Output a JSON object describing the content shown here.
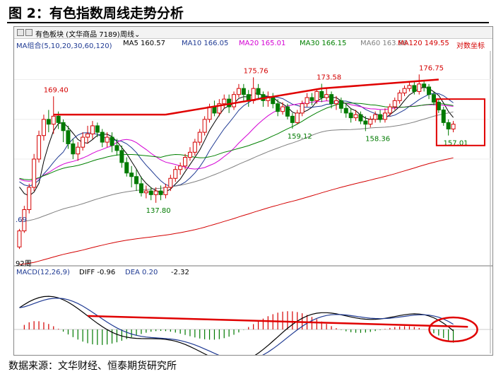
{
  "title": "图 2：有色指数周线走势分析",
  "source": "数据来源：文华财经、恒泰期货研究所",
  "toolbar": {
    "instrument": "有色板块 (文华商品  7189)",
    "period": "周线",
    "axis_mode": "对数坐标",
    "bars_label": "92周",
    "left_tick": ".69"
  },
  "ma_legend": [
    {
      "label": "MA组合(5,10,20,30,60,120)",
      "color": "#1f3a93"
    },
    {
      "label": "MA5 160.57",
      "color": "#000000"
    },
    {
      "label": "MA10 166.05",
      "color": "#1f3a93"
    },
    {
      "label": "MA20 165.01",
      "color": "#d400d4"
    },
    {
      "label": "MA30 166.15",
      "color": "#008000"
    },
    {
      "label": "MA60 163.86",
      "color": "#808080"
    },
    {
      "label": "MA120 149.55",
      "color": "#d40000"
    }
  ],
  "macd_legend": {
    "name": "MACD(12,26,9)",
    "diff": "DIFF -0.96",
    "dea": "DEA 0.20",
    "macd": "-2.32"
  },
  "colors": {
    "up": "#d40000",
    "down": "#007a00",
    "annotation": "#e00000"
  },
  "chart_data": [
    {
      "type": "candlestick",
      "title": "有色指数周线",
      "scale": "log",
      "ylim": [
        125,
        185
      ],
      "annotations": [
        {
          "label": "169.40",
          "value": 169.4,
          "bar": 7
        },
        {
          "label": "137.80",
          "value": 137.8,
          "bar": 28
        },
        {
          "label": "175.76",
          "value": 175.76,
          "bar": 48
        },
        {
          "label": "159.12",
          "value": 159.12,
          "bar": 57
        },
        {
          "label": "173.58",
          "value": 173.58,
          "bar": 63
        },
        {
          "label": "158.36",
          "value": 158.36,
          "bar": 73
        },
        {
          "label": "176.75",
          "value": 176.75,
          "bar": 84
        },
        {
          "label": "157.01",
          "value": 157.01,
          "bar": 89
        }
      ],
      "candles": [
        [
          126.5,
          130.5,
          126,
          131
        ],
        [
          130.5,
          136,
          130,
          137
        ],
        [
          136,
          142,
          135,
          143
        ],
        [
          142,
          150,
          141,
          151.5
        ],
        [
          150,
          157,
          149,
          158.5
        ],
        [
          157,
          162,
          155.5,
          163.5
        ],
        [
          162,
          160.5,
          158,
          165
        ],
        [
          160.5,
          163,
          157.5,
          169.4
        ],
        [
          163,
          161,
          159,
          164.5
        ],
        [
          161,
          158.5,
          155,
          162
        ],
        [
          158.5,
          154.5,
          153,
          160
        ],
        [
          154.5,
          151.5,
          150,
          156
        ],
        [
          151.5,
          153.5,
          149.5,
          155
        ],
        [
          153.5,
          156.5,
          152.5,
          158
        ],
        [
          156.5,
          157.5,
          154.5,
          160
        ],
        [
          157.5,
          160,
          156,
          161.5
        ],
        [
          160,
          158,
          156.5,
          161
        ],
        [
          158,
          155,
          153.5,
          159
        ],
        [
          155,
          156.5,
          153.5,
          158
        ],
        [
          156.5,
          154,
          152,
          158
        ],
        [
          154,
          152.5,
          151,
          156
        ],
        [
          152.5,
          149,
          147.5,
          154
        ],
        [
          149,
          146,
          145,
          150.5
        ],
        [
          146,
          145,
          142,
          148
        ],
        [
          145,
          143,
          141,
          147
        ],
        [
          143,
          140.5,
          139.5,
          145
        ],
        [
          140.5,
          141,
          139,
          142.5
        ],
        [
          141,
          140,
          138.5,
          142
        ],
        [
          140,
          141,
          137.8,
          142
        ],
        [
          141,
          140,
          138.5,
          142.5
        ],
        [
          140,
          142,
          139,
          143
        ],
        [
          142,
          144.5,
          141,
          145.5
        ],
        [
          144.5,
          147,
          143.5,
          148
        ],
        [
          147,
          148,
          145.5,
          149
        ],
        [
          148,
          150.5,
          147,
          151.5
        ],
        [
          150.5,
          152,
          149.5,
          153.5
        ],
        [
          152,
          155,
          151,
          156
        ],
        [
          155,
          158,
          154,
          159
        ],
        [
          158,
          162,
          157,
          163
        ],
        [
          162,
          166,
          161,
          167
        ],
        [
          166,
          164,
          163,
          168
        ],
        [
          164,
          167,
          163,
          168.5
        ],
        [
          167,
          168.5,
          165.5,
          170
        ],
        [
          168.5,
          166,
          164,
          170
        ],
        [
          166,
          170,
          165,
          171
        ],
        [
          170,
          172,
          169,
          173.5
        ],
        [
          172,
          170,
          168,
          173.5
        ],
        [
          170,
          168,
          166,
          171.5
        ],
        [
          168,
          172,
          167,
          175.76
        ],
        [
          172,
          170,
          168.5,
          173.5
        ],
        [
          170,
          168,
          166,
          171
        ],
        [
          168,
          169,
          166,
          171
        ],
        [
          169,
          167,
          165.5,
          170.5
        ],
        [
          167,
          164.5,
          163,
          168.5
        ],
        [
          164.5,
          166,
          163.5,
          167.5
        ],
        [
          166,
          163,
          162,
          167
        ],
        [
          163,
          161,
          159.12,
          164
        ],
        [
          161,
          164,
          160.5,
          165
        ],
        [
          164,
          167,
          163,
          168
        ],
        [
          167,
          169,
          166,
          170.5
        ],
        [
          169,
          168,
          166.5,
          170.5
        ],
        [
          168,
          171,
          167,
          172
        ],
        [
          171,
          169,
          167.5,
          173.58
        ],
        [
          169,
          170,
          168,
          172
        ],
        [
          170,
          167,
          165.5,
          171
        ],
        [
          167,
          168,
          165,
          169.5
        ],
        [
          168,
          165.5,
          164,
          169
        ],
        [
          165.5,
          164,
          162.5,
          167
        ],
        [
          164,
          162.5,
          161,
          165.5
        ],
        [
          162.5,
          163.5,
          161.5,
          165
        ],
        [
          163.5,
          161.5,
          160.5,
          164.5
        ],
        [
          161.5,
          160.5,
          158.36,
          163
        ],
        [
          160.5,
          162,
          159.5,
          163
        ],
        [
          162,
          163.5,
          161,
          164.5
        ],
        [
          163.5,
          162,
          161,
          165
        ],
        [
          162,
          164,
          161,
          165.5
        ],
        [
          164,
          166,
          163,
          167
        ],
        [
          166,
          168,
          165,
          169
        ],
        [
          168,
          170.5,
          167,
          171.5
        ],
        [
          170.5,
          172,
          169.5,
          173
        ],
        [
          172,
          173,
          171,
          174
        ],
        [
          173,
          171,
          170,
          174.5
        ],
        [
          171,
          173.5,
          170,
          176.75
        ],
        [
          173.5,
          172.5,
          171,
          174.5
        ],
        [
          172.5,
          170,
          168.5,
          173.5
        ],
        [
          170,
          167.5,
          166.5,
          171
        ],
        [
          167.5,
          165,
          164,
          168.5
        ],
        [
          165,
          161,
          160,
          166
        ],
        [
          161,
          159,
          157.01,
          162
        ],
        [
          159,
          160.5,
          158,
          161.5
        ]
      ],
      "moving_averages": {
        "periods": [
          5,
          10,
          20,
          30,
          60,
          120
        ]
      },
      "trendlines": [
        {
          "from": {
            "bar": 7,
            "value": 163.5
          },
          "to": {
            "bar": 30,
            "value": 163.5
          }
        },
        {
          "from": {
            "bar": 30,
            "value": 163.5
          },
          "to": {
            "bar": 62,
            "value": 172
          }
        },
        {
          "from": {
            "bar": 62,
            "value": 172
          },
          "to": {
            "bar": 86,
            "value": 175
          }
        }
      ],
      "highlight_box": {
        "from_bar": 86,
        "to_bar": 95,
        "y_top": 168.5,
        "y_bottom": 154
      }
    },
    {
      "type": "macd",
      "title": "MACD(12,26,9)",
      "series": [
        {
          "name": "DIFF",
          "color": "#000000"
        },
        {
          "name": "DEA",
          "color": "#1f3a93"
        },
        {
          "name": "MACD",
          "color_up": "#d40000",
          "color_down": "#007a00"
        }
      ],
      "values_last": {
        "DIFF": -0.96,
        "DEA": 0.2,
        "MACD": -2.32
      },
      "trendline": {
        "from_bar": 14,
        "to_bar": 92
      },
      "highlight_ellipse": {
        "bar": 89
      }
    }
  ]
}
